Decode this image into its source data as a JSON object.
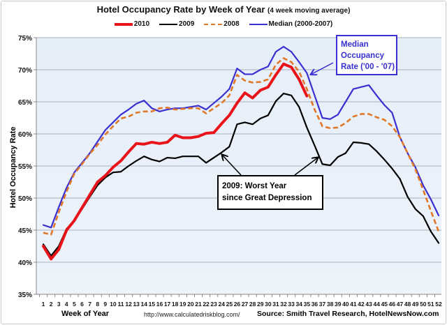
{
  "chart_data": {
    "type": "line",
    "title": "Hotel Occupancy Rate by  Week of Year",
    "subtitle": "(4 week moving average)",
    "xlabel": "Week of Year",
    "ylabel": "Hotel Occupancy Rate",
    "ylim": [
      35,
      75
    ],
    "yticks": [
      "35%",
      "40%",
      "45%",
      "50%",
      "55%",
      "60%",
      "65%",
      "70%",
      "75%"
    ],
    "ytick_values": [
      35,
      40,
      45,
      50,
      55,
      60,
      65,
      70,
      75
    ],
    "xlim": [
      1,
      52
    ],
    "x": [
      1,
      2,
      3,
      4,
      5,
      6,
      7,
      8,
      9,
      10,
      11,
      12,
      13,
      14,
      15,
      16,
      17,
      18,
      19,
      20,
      21,
      22,
      23,
      24,
      25,
      26,
      27,
      28,
      29,
      30,
      31,
      32,
      33,
      34,
      35,
      36,
      37,
      38,
      39,
      40,
      41,
      42,
      43,
      44,
      45,
      46,
      47,
      48,
      49,
      50,
      51,
      52
    ],
    "grid": true,
    "legend_position": "top-center",
    "series": [
      {
        "name": "2010",
        "color": "#e8141a",
        "style": "solid-thick",
        "values": [
          42.5,
          40.5,
          42.0,
          45.0,
          46.5,
          48.5,
          50.5,
          52.5,
          53.5,
          54.8,
          55.8,
          57.2,
          58.5,
          58.4,
          58.7,
          58.5,
          58.7,
          59.8,
          59.4,
          59.4,
          59.6,
          60.1,
          60.2,
          61.6,
          62.9,
          64.8,
          66.4,
          65.6,
          66.8,
          67.3,
          69.2,
          70.9,
          70.4,
          68.5,
          65.9
        ]
      },
      {
        "name": "2009",
        "color": "#000000",
        "style": "solid",
        "values": [
          42.8,
          41.0,
          42.5,
          45.2,
          46.5,
          48.3,
          50.2,
          52.0,
          53.2,
          54.0,
          54.1,
          55.0,
          55.8,
          56.5,
          56.0,
          55.7,
          56.3,
          56.2,
          56.5,
          56.5,
          56.5,
          55.5,
          56.3,
          57.1,
          58.0,
          61.5,
          61.8,
          61.5,
          62.4,
          62.9,
          65.1,
          66.3,
          66.0,
          64.2,
          61.0,
          58.2,
          55.3,
          55.1,
          56.4,
          57.0,
          58.7,
          58.6,
          58.4,
          57.3,
          56.0,
          54.6,
          53.0,
          50.2,
          48.3,
          47.2,
          44.8,
          43.0
        ]
      },
      {
        "name": "2008",
        "color": "#e0782a",
        "style": "dashed",
        "values": [
          44.6,
          44.3,
          47.8,
          51.0,
          53.8,
          55.3,
          56.9,
          58.3,
          59.9,
          61.2,
          62.4,
          62.7,
          63.3,
          63.5,
          63.5,
          64.0,
          64.1,
          63.8,
          63.9,
          64.0,
          64.0,
          63.2,
          64.0,
          64.8,
          66.0,
          69.2,
          68.3,
          68.0,
          68.1,
          68.5,
          70.8,
          71.8,
          71.2,
          69.7,
          67.0,
          63.8,
          61.2,
          60.9,
          61.0,
          61.7,
          62.7,
          63.1,
          63.1,
          62.6,
          62.2,
          61.2,
          59.5,
          57.0,
          54.5,
          51.3,
          48.0,
          44.8
        ]
      },
      {
        "name": "Median (2000-2007)",
        "color": "#3a2fd0",
        "style": "solid",
        "values": [
          45.8,
          45.4,
          48.6,
          51.6,
          54.0,
          55.5,
          57.0,
          58.8,
          60.6,
          61.8,
          63.0,
          63.8,
          64.7,
          65.2,
          64.0,
          63.5,
          63.8,
          64.0,
          64.0,
          64.2,
          64.4,
          63.8,
          64.8,
          65.8,
          67.0,
          70.2,
          69.3,
          69.3,
          70.0,
          70.5,
          72.8,
          73.6,
          72.8,
          71.2,
          69.5,
          66.0,
          62.5,
          62.3,
          63.0,
          65.0,
          67.0,
          67.3,
          67.6,
          66.0,
          64.5,
          63.3,
          59.5,
          57.0,
          54.8,
          52.0,
          49.8,
          47.3
        ]
      }
    ],
    "annotations": [
      {
        "text_lines": [
          "Median",
          "Occupancy",
          "Rate ('00 - '07)"
        ],
        "color": "#3a2fd0",
        "points_to_series": "Median (2000-2007)",
        "points_to_week": 35
      },
      {
        "text_lines": [
          "2009: Worst Year",
          "since Great Depression"
        ],
        "color": "#000000",
        "points_to_series": "2009",
        "points_to_weeks": [
          25,
          37
        ]
      }
    ]
  },
  "footer": {
    "url": "http://www.calculatedriskblog.com/",
    "source": "Source: Smith Travel Research, HotelNewsNow.com"
  }
}
